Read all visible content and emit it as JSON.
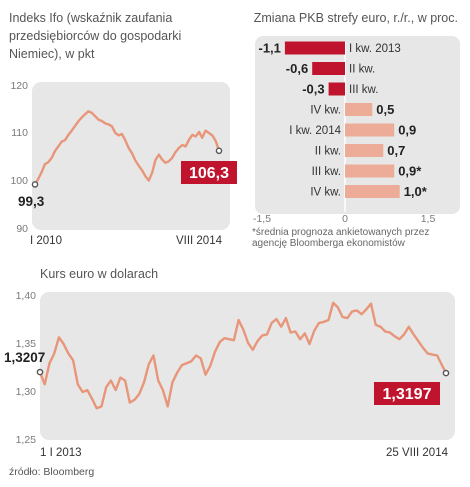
{
  "chart_data": [
    {
      "type": "line",
      "title": "Indeks Ifo (wskaźnik zaufania przedsiębiorców do gospodarki Niemiec), w pkt",
      "title_lines": [
        "Indeks Ifo (wskaźnik zaufania",
        "przedsiębiorców do gospodarki",
        "Niemiec), w pkt"
      ],
      "ylim": [
        90,
        120
      ],
      "yticks": [
        "120",
        "110",
        "100",
        "90"
      ],
      "x_labels": [
        "I 2010",
        "VIII 2014"
      ],
      "x_range": [
        "2010-01",
        "2014-08"
      ],
      "series": [
        {
          "x": [
            "2010-01",
            "2010-02",
            "2010-03",
            "2010-04",
            "2010-05",
            "2010-06",
            "2010-07",
            "2010-08",
            "2010-09",
            "2010-10",
            "2010-11",
            "2010-12",
            "2011-01",
            "2011-02",
            "2011-03",
            "2011-04",
            "2011-05",
            "2011-06",
            "2011-07",
            "2011-08",
            "2011-09",
            "2011-10",
            "2011-11",
            "2011-12",
            "2012-01",
            "2012-02",
            "2012-03",
            "2012-04",
            "2012-05",
            "2012-06",
            "2012-07",
            "2012-08",
            "2012-09",
            "2012-10",
            "2012-11",
            "2012-12",
            "2013-01",
            "2013-02",
            "2013-03",
            "2013-04",
            "2013-05",
            "2013-06",
            "2013-07",
            "2013-08",
            "2013-09",
            "2013-10",
            "2013-11",
            "2013-12",
            "2014-01",
            "2014-02",
            "2014-03",
            "2014-04",
            "2014-05",
            "2014-06",
            "2014-07",
            "2014-08"
          ],
          "values": [
            99.3,
            100.5,
            101.8,
            103.5,
            103.9,
            104.8,
            106.2,
            107.2,
            108.2,
            108.5,
            109.6,
            110.5,
            111.5,
            112.5,
            113.2,
            113.9,
            114.5,
            114.2,
            113.5,
            112.8,
            112.5,
            112.0,
            111.8,
            111.4,
            110.0,
            109.5,
            109.8,
            108.5,
            106.9,
            105.8,
            104.3,
            103.2,
            102.2,
            101.0,
            100.1,
            101.7,
            104.4,
            105.5,
            104.5,
            103.8,
            104.1,
            104.8,
            106.0,
            106.9,
            107.5,
            107.2,
            108.6,
            109.6,
            109.3,
            110.2,
            109.0,
            110.5,
            110.0,
            109.5,
            108.4,
            106.3
          ]
        }
      ],
      "start_label": "99,3",
      "end_label": "106,3",
      "grid": "none",
      "colors": {
        "line": "#e8967a",
        "plot_bg": "#e7e7e7",
        "box": "#c0142e",
        "marker": "#555555"
      }
    },
    {
      "type": "bar",
      "title": "Zmiana PKB strefy euro, r./r., w proc.",
      "categories": [
        "I kw. 2013",
        "II kw.",
        "III kw.",
        "IV kw.",
        "I kw. 2014",
        "II kw.",
        "III kw.",
        "IV kw."
      ],
      "values": [
        -1.1,
        -0.6,
        -0.3,
        0.5,
        0.9,
        0.7,
        0.9,
        1.0
      ],
      "value_labels": [
        "-1,1",
        "-0,6",
        "-0,3",
        "0,5",
        "0,9",
        "0,7",
        "0,9*",
        "1,0*"
      ],
      "xlim": [
        -1.5,
        1.5
      ],
      "xticks": [
        "-1,5",
        "0",
        "1,5"
      ],
      "note": "*średnia prognoza ankietowanych przez agencję Bloomberga ekonomistów",
      "note_lines": [
        "*średnia prognoza ankietowanych przez",
        "agencję Bloomberga ekonomistów"
      ],
      "colors": {
        "negative": "#c0142e",
        "positive": "#ecac97",
        "plot_bg": "#e7e7e7"
      }
    },
    {
      "type": "line",
      "title": "Kurs euro w dolarach",
      "ylim": [
        1.25,
        1.4
      ],
      "yticks": [
        "1,40",
        "1,35",
        "1,30",
        "1,25"
      ],
      "x_labels": [
        "1 I 2013",
        "25 VIII 2014"
      ],
      "x_range": [
        "2013-01-01",
        "2014-08-25"
      ],
      "series": [
        {
          "x": [
            "2013-01-01",
            "2013-01-08",
            "2013-01-15",
            "2013-01-22",
            "2013-01-29",
            "2013-02-05",
            "2013-02-12",
            "2013-02-19",
            "2013-02-26",
            "2013-03-05",
            "2013-03-12",
            "2013-03-19",
            "2013-03-26",
            "2013-04-02",
            "2013-04-09",
            "2013-04-16",
            "2013-04-23",
            "2013-04-30",
            "2013-05-07",
            "2013-05-14",
            "2013-05-21",
            "2013-05-28",
            "2013-06-04",
            "2013-06-11",
            "2013-06-18",
            "2013-06-25",
            "2013-07-02",
            "2013-07-09",
            "2013-07-16",
            "2013-07-23",
            "2013-07-30",
            "2013-08-06",
            "2013-08-13",
            "2013-08-20",
            "2013-08-27",
            "2013-09-03",
            "2013-09-10",
            "2013-09-17",
            "2013-09-24",
            "2013-10-01",
            "2013-10-08",
            "2013-10-15",
            "2013-10-22",
            "2013-10-29",
            "2013-11-05",
            "2013-11-12",
            "2013-11-19",
            "2013-11-26",
            "2013-12-03",
            "2013-12-10",
            "2013-12-17",
            "2013-12-24",
            "2013-12-31",
            "2014-01-07",
            "2014-01-14",
            "2014-01-21",
            "2014-01-28",
            "2014-02-04",
            "2014-02-11",
            "2014-02-18",
            "2014-02-25",
            "2014-03-04",
            "2014-03-11",
            "2014-03-18",
            "2014-03-25",
            "2014-04-01",
            "2014-04-08",
            "2014-04-15",
            "2014-04-22",
            "2014-04-29",
            "2014-05-06",
            "2014-05-13",
            "2014-05-20",
            "2014-05-27",
            "2014-06-03",
            "2014-06-10",
            "2014-06-17",
            "2014-06-24",
            "2014-07-01",
            "2014-07-08",
            "2014-07-15",
            "2014-07-22",
            "2014-07-29",
            "2014-08-05",
            "2014-08-12",
            "2014-08-19",
            "2014-08-25"
          ],
          "values": [
            1.3207,
            1.308,
            1.33,
            1.34,
            1.357,
            1.35,
            1.34,
            1.333,
            1.308,
            1.3,
            1.302,
            1.293,
            1.283,
            1.285,
            1.305,
            1.312,
            1.302,
            1.315,
            1.312,
            1.289,
            1.292,
            1.298,
            1.31,
            1.329,
            1.338,
            1.312,
            1.302,
            1.285,
            1.31,
            1.32,
            1.328,
            1.33,
            1.332,
            1.338,
            1.335,
            1.318,
            1.327,
            1.342,
            1.352,
            1.356,
            1.355,
            1.354,
            1.375,
            1.365,
            1.351,
            1.344,
            1.353,
            1.359,
            1.36,
            1.372,
            1.376,
            1.368,
            1.377,
            1.362,
            1.363,
            1.355,
            1.361,
            1.35,
            1.364,
            1.372,
            1.373,
            1.375,
            1.393,
            1.388,
            1.378,
            1.377,
            1.384,
            1.385,
            1.381,
            1.386,
            1.392,
            1.37,
            1.368,
            1.363,
            1.362,
            1.358,
            1.355,
            1.36,
            1.368,
            1.36,
            1.353,
            1.346,
            1.34,
            1.339,
            1.338,
            1.328,
            1.3197
          ]
        }
      ],
      "start_label": "1,3207",
      "end_label": "1,3197",
      "grid": "none",
      "colors": {
        "line": "#e8967a",
        "plot_bg": "#e7e7e7",
        "box": "#c0142e",
        "marker": "#555555"
      }
    }
  ],
  "source": "źródło: Bloomberg"
}
